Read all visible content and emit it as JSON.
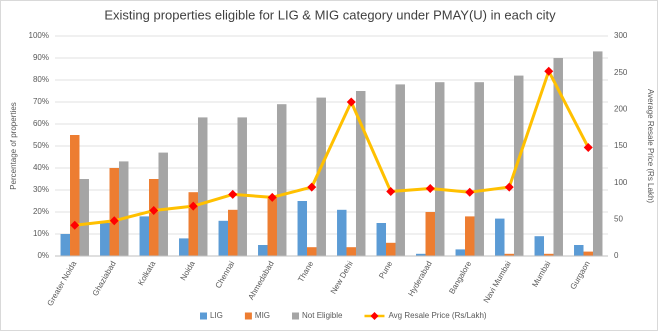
{
  "chart_data": {
    "type": "bar",
    "title": "Existing properties eligible for LIG & MIG category under PMAY(U) in each city",
    "y_label": "Percentage of properties",
    "y2_label": "Average Resale Price (Rs Lakh)",
    "categories": [
      "Greater Noida",
      "Ghaziabad",
      "Kolkata",
      "Noida",
      "Chennai",
      "Ahmedabad",
      "Thane",
      "New Delhi",
      "Pune",
      "Hyderabad",
      "Bangalore",
      "Navi Mumbai",
      "Mumbai",
      "Gurgaon"
    ],
    "series": [
      {
        "name": "LIG",
        "color": "#5b9bd5",
        "values": [
          10,
          15,
          18,
          8,
          16,
          5,
          25,
          21,
          15,
          1,
          3,
          17,
          9,
          5
        ]
      },
      {
        "name": "MIG",
        "color": "#ed7d31",
        "values": [
          55,
          40,
          35,
          29,
          21,
          27,
          4,
          4,
          6,
          20,
          18,
          1,
          1,
          2
        ]
      },
      {
        "name": "Not Eligible",
        "color": "#a5a5a5",
        "values": [
          35,
          43,
          47,
          63,
          63,
          69,
          72,
          75,
          78,
          79,
          79,
          82,
          90,
          93
        ]
      },
      {
        "name": "Avg Resale Price (Rs/Lakh)",
        "color": "#ffc000",
        "marker_color": "#ff0000",
        "type": "line",
        "axis": "y2",
        "values": [
          42,
          48,
          62,
          68,
          84,
          80,
          94,
          210,
          88,
          92,
          87,
          94,
          252,
          148
        ]
      }
    ],
    "ylim": [
      0,
      100
    ],
    "yticks": [
      {
        "value": 0,
        "label": "0%"
      },
      {
        "value": 10,
        "label": "10%"
      },
      {
        "value": 20,
        "label": "20%"
      },
      {
        "value": 30,
        "label": "30%"
      },
      {
        "value": 40,
        "label": "40%"
      },
      {
        "value": 50,
        "label": "50%"
      },
      {
        "value": 60,
        "label": "60%"
      },
      {
        "value": 70,
        "label": "70%"
      },
      {
        "value": 80,
        "label": "80%"
      },
      {
        "value": 90,
        "label": "90%"
      },
      {
        "value": 100,
        "label": "100%"
      }
    ],
    "y2lim": [
      0,
      300
    ],
    "y2ticks": [
      0,
      50,
      100,
      150,
      200,
      250,
      300
    ],
    "grid": true,
    "legend": "bottom"
  }
}
